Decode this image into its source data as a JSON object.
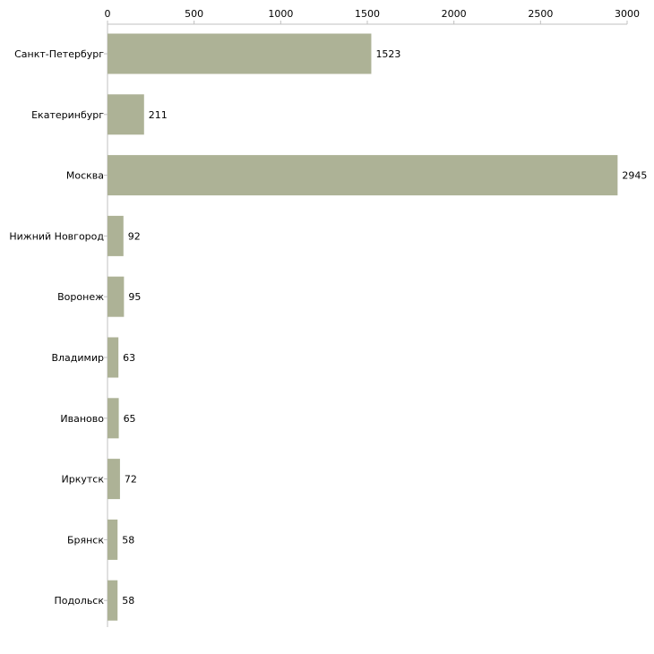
{
  "chart_data": {
    "type": "bar",
    "orientation": "horizontal",
    "categories": [
      "Санкт-Петербург",
      "Екатеринбург",
      "Москва",
      "Нижний Новгород",
      "Воронеж",
      "Владимир",
      "Иваново",
      "Иркутск",
      "Брянск",
      "Подольск"
    ],
    "values": [
      1523,
      211,
      2945,
      92,
      95,
      63,
      65,
      72,
      58,
      58
    ],
    "value_labels": [
      "1523",
      "211",
      "2945",
      "92",
      "95",
      "63",
      "65",
      "72",
      "58",
      "58"
    ],
    "xlim": [
      0,
      3000
    ],
    "x_ticks": [
      0,
      500,
      1000,
      1500,
      2000,
      2500,
      3000
    ],
    "x_tick_labels": [
      "0",
      "500",
      "1000",
      "1500",
      "2000",
      "2500",
      "3000"
    ],
    "axis_position": "top",
    "grid": false,
    "title": "",
    "xlabel": "",
    "ylabel": "",
    "bar_color": "#adb296"
  }
}
